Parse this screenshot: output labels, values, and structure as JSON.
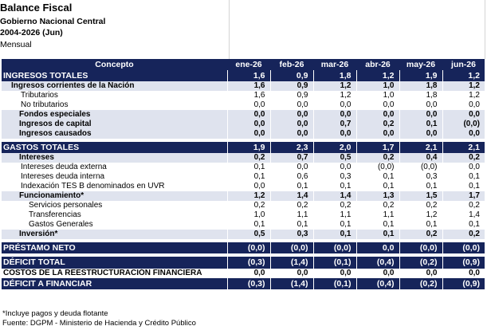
{
  "header": {
    "title": "Balance Fiscal",
    "subtitle": "Gobierno Nacional Central",
    "period": "2004-2026 (Jun)",
    "frequency": "Mensual"
  },
  "table": {
    "concept_header": "Concepto",
    "months": [
      "ene-26",
      "feb-26",
      "mar-26",
      "abr-26",
      "may-26",
      "jun-26"
    ],
    "rows": [
      {
        "label": "INGRESOS TOTALES",
        "values": [
          "1,6",
          "0,9",
          "1,8",
          "1,2",
          "1,9",
          "1,2"
        ]
      },
      {
        "label": "Ingresos corrientes de la Nación",
        "values": [
          "1,6",
          "0,9",
          "1,2",
          "1,0",
          "1,8",
          "1,2"
        ]
      },
      {
        "label": "Tributarios",
        "values": [
          "1,6",
          "0,9",
          "1,2",
          "1,0",
          "1,8",
          "1,2"
        ]
      },
      {
        "label": "No tributarios",
        "values": [
          "0,0",
          "0,0",
          "0,0",
          "0,0",
          "0,0",
          "0,0"
        ]
      },
      {
        "label": "Fondos especiales",
        "values": [
          "0,0",
          "0,0",
          "0,0",
          "0,0",
          "0,0",
          "0,0"
        ]
      },
      {
        "label": "Ingresos de capital",
        "values": [
          "0,0",
          "0,0",
          "0,7",
          "0,2",
          "0,1",
          "(0,0)"
        ]
      },
      {
        "label": "Ingresos causados",
        "values": [
          "0,0",
          "0,0",
          "0,0",
          "0,0",
          "0,0",
          "0,0"
        ]
      },
      {
        "label": "GASTOS TOTALES",
        "values": [
          "1,9",
          "2,3",
          "2,0",
          "1,7",
          "2,1",
          "2,1"
        ]
      },
      {
        "label": "Intereses",
        "values": [
          "0,2",
          "0,7",
          "0,5",
          "0,2",
          "0,4",
          "0,2"
        ]
      },
      {
        "label": "Intereses deuda externa",
        "values": [
          "0,1",
          "0,0",
          "0,0",
          "(0,0)",
          "(0,0)",
          "0,0"
        ]
      },
      {
        "label": "Intereses deuda interna",
        "values": [
          "0,1",
          "0,6",
          "0,3",
          "0,1",
          "0,3",
          "0,1"
        ]
      },
      {
        "label": "Indexación TES B denominados en UVR",
        "values": [
          "0,0",
          "0,1",
          "0,1",
          "0,1",
          "0,1",
          "0,1"
        ]
      },
      {
        "label": "Funcionamiento*",
        "values": [
          "1,2",
          "1,4",
          "1,4",
          "1,3",
          "1,5",
          "1,7"
        ]
      },
      {
        "label": "Servicios personales",
        "values": [
          "0,2",
          "0,2",
          "0,2",
          "0,2",
          "0,2",
          "0,2"
        ]
      },
      {
        "label": "Transferencias",
        "values": [
          "1,0",
          "1,1",
          "1,1",
          "1,1",
          "1,2",
          "1,4"
        ]
      },
      {
        "label": "Gastos Generales",
        "values": [
          "0,1",
          "0,1",
          "0,1",
          "0,1",
          "0,1",
          "0,1"
        ]
      },
      {
        "label": "Inversión*",
        "values": [
          "0,5",
          "0,3",
          "0,1",
          "0,1",
          "0,2",
          "0,2"
        ]
      },
      {
        "label": "PRÉSTAMO NETO",
        "values": [
          "(0,0)",
          "(0,0)",
          "(0,0)",
          "0,0",
          "(0,0)",
          "(0,0)"
        ]
      },
      {
        "label": "DÉFICIT TOTAL",
        "values": [
          "(0,3)",
          "(1,4)",
          "(0,1)",
          "(0,4)",
          "(0,2)",
          "(0,9)"
        ]
      },
      {
        "label": "COSTOS DE LA REESTRUCTURACIÓN FINANCIERA",
        "values": [
          "0,0",
          "0,0",
          "0,0",
          "0,0",
          "0,0",
          "0,0"
        ]
      },
      {
        "label": "DÉFICIT A FINANCIAR",
        "values": [
          "(0,3)",
          "(1,4)",
          "(0,1)",
          "(0,4)",
          "(0,2)",
          "(0,9)"
        ]
      }
    ]
  },
  "notes": {
    "footnote": "*Incluye pagos y deuda flotante",
    "source": "Fuente: DGPM - Ministerio de Hacienda y Crédito Público"
  },
  "colors": {
    "band": "#16245a",
    "light_band": "#dfe3ee"
  }
}
